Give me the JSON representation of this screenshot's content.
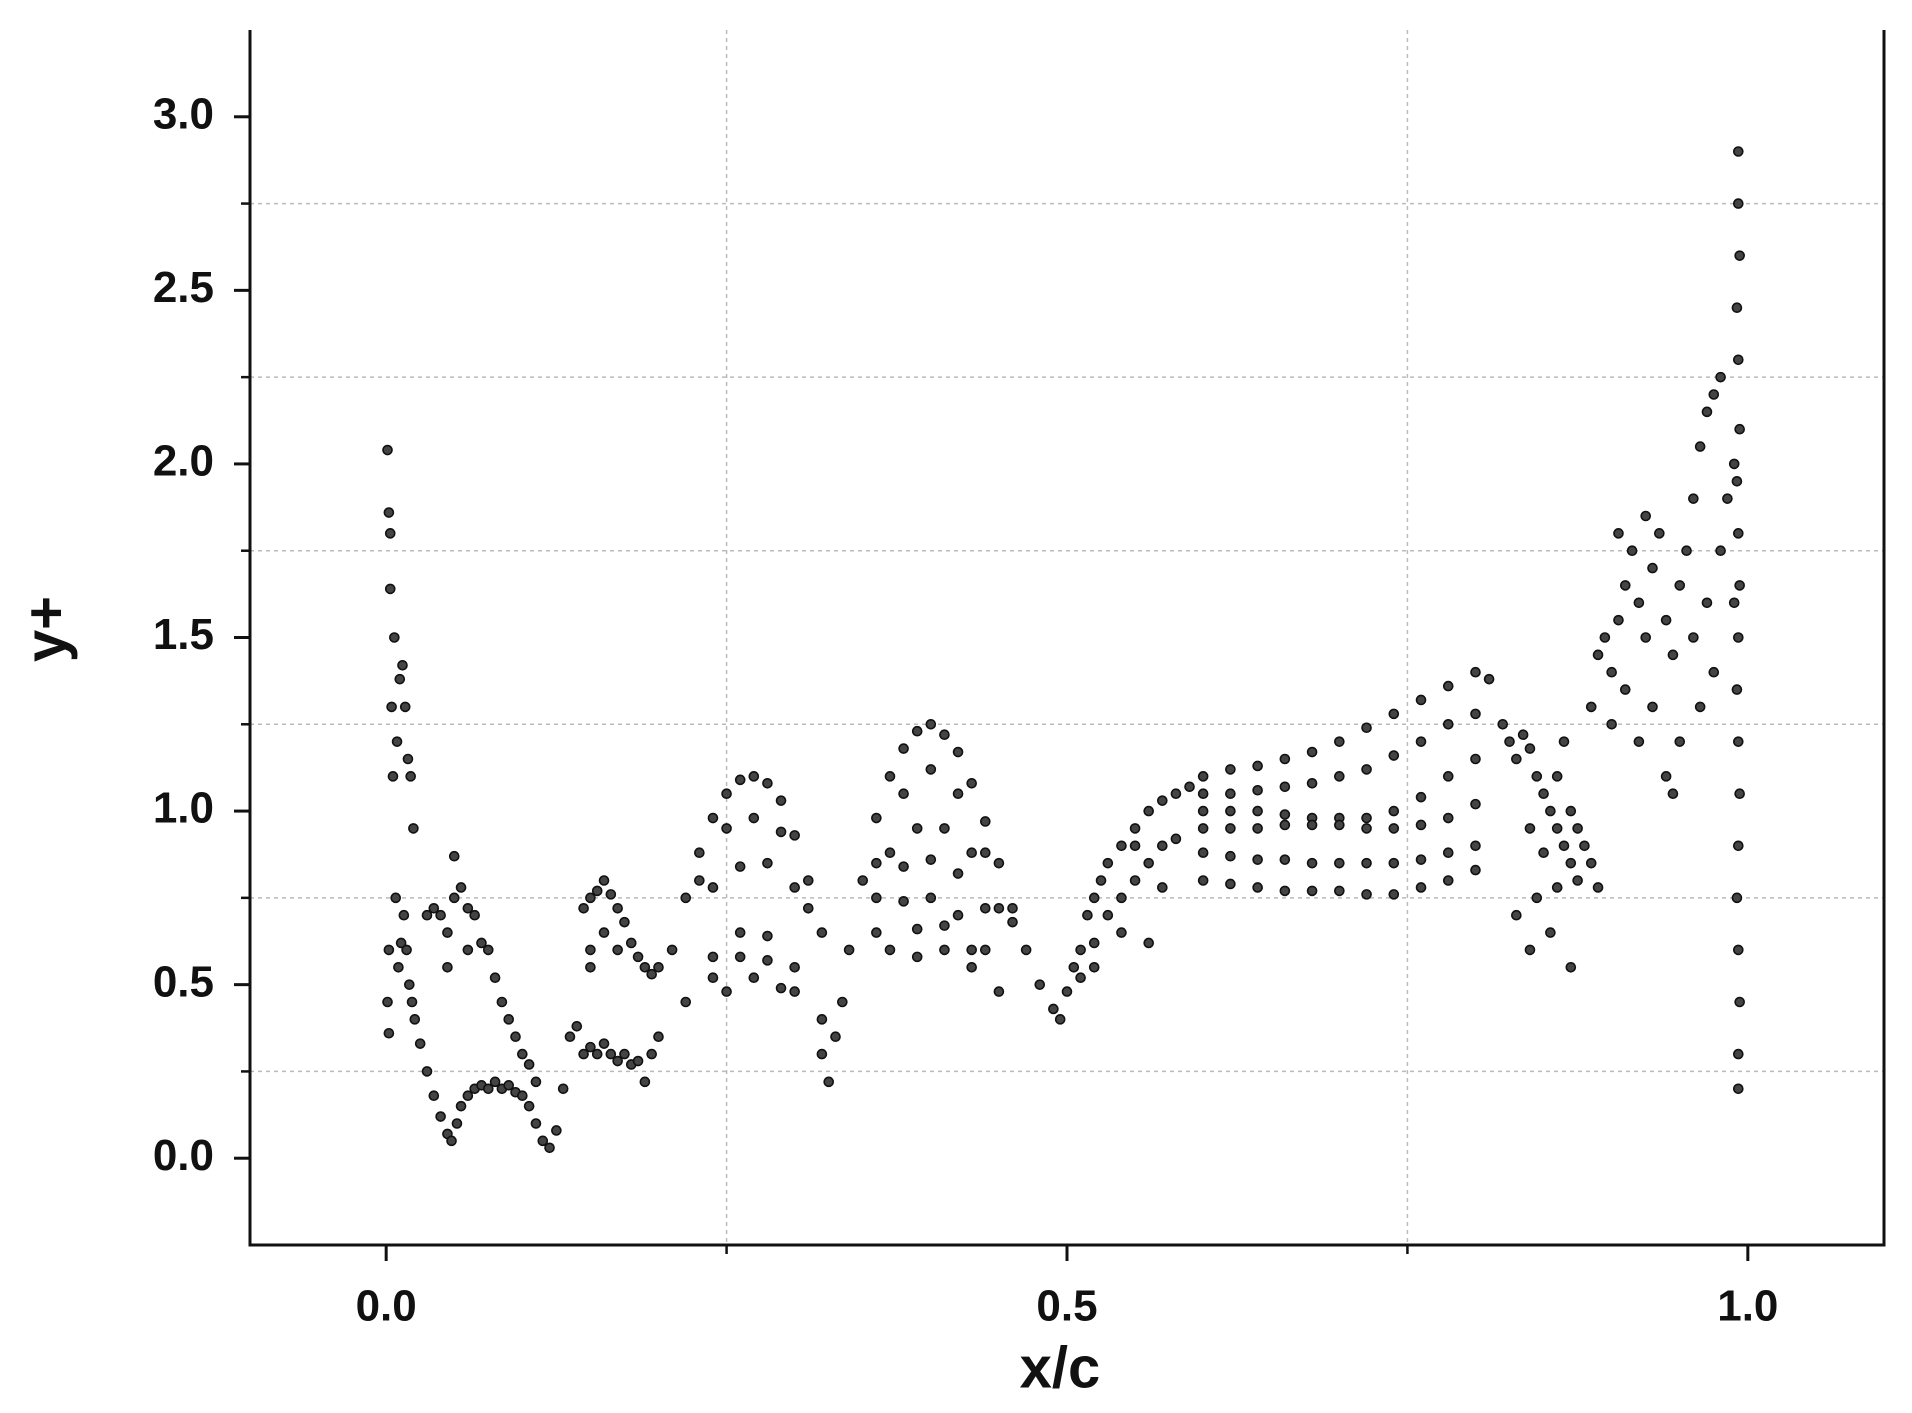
{
  "chart_data": {
    "type": "scatter",
    "xlabel": "x/c",
    "ylabel": "y+",
    "color": "#111111",
    "xlim": [
      -0.1,
      1.1
    ],
    "ylim": [
      -0.25,
      3.25
    ],
    "xticks": [
      {
        "value": 0,
        "label": "0.0"
      },
      {
        "value": 0.5,
        "label": "0.5"
      },
      {
        "value": 1,
        "label": "1.0"
      }
    ],
    "yticks": [
      {
        "value": 0,
        "label": "0.0"
      },
      {
        "value": 0.5,
        "label": "0.5"
      },
      {
        "value": 1,
        "label": "1.0"
      },
      {
        "value": 1.5,
        "label": "1.5"
      },
      {
        "value": 2,
        "label": "2.0"
      },
      {
        "value": 2.5,
        "label": "2.5"
      },
      {
        "value": 3,
        "label": "3.0"
      }
    ],
    "xgrid": [
      0.25,
      0.75
    ],
    "ygrid": [
      0.25,
      0.75,
      1.25,
      1.75,
      2.25,
      2.75
    ],
    "grid": true,
    "x": [
      0.001,
      0.002,
      0.003,
      0.003,
      0.004,
      0.002,
      0.001,
      0.002,
      0.005,
      0.006,
      0.008,
      0.01,
      0.012,
      0.014,
      0.016,
      0.018,
      0.02,
      0.007,
      0.009,
      0.011,
      0.013,
      0.015,
      0.017,
      0.019,
      0.021,
      0.025,
      0.03,
      0.035,
      0.04,
      0.045,
      0.048,
      0.052,
      0.055,
      0.06,
      0.065,
      0.07,
      0.075,
      0.08,
      0.085,
      0.09,
      0.095,
      0.1,
      0.105,
      0.11,
      0.115,
      0.12,
      0.125,
      0.03,
      0.035,
      0.04,
      0.045,
      0.05,
      0.055,
      0.06,
      0.065,
      0.07,
      0.075,
      0.08,
      0.085,
      0.09,
      0.095,
      0.1,
      0.105,
      0.11,
      0.05,
      0.045,
      0.06,
      0.13,
      0.135,
      0.14,
      0.145,
      0.15,
      0.155,
      0.16,
      0.165,
      0.17,
      0.175,
      0.18,
      0.185,
      0.19,
      0.195,
      0.2,
      0.145,
      0.15,
      0.155,
      0.16,
      0.165,
      0.17,
      0.175,
      0.18,
      0.185,
      0.19,
      0.195,
      0.2,
      0.15,
      0.16,
      0.17,
      0.15,
      0.21,
      0.22,
      0.23,
      0.24,
      0.25,
      0.26,
      0.27,
      0.28,
      0.29,
      0.3,
      0.31,
      0.32,
      0.23,
      0.25,
      0.27,
      0.29,
      0.31,
      0.24,
      0.26,
      0.28,
      0.3,
      0.22,
      0.24,
      0.26,
      0.28,
      0.3,
      0.32,
      0.24,
      0.26,
      0.28,
      0.3,
      0.25,
      0.27,
      0.29,
      0.32,
      0.325,
      0.33,
      0.335,
      0.34,
      0.35,
      0.36,
      0.37,
      0.38,
      0.39,
      0.4,
      0.41,
      0.42,
      0.43,
      0.44,
      0.45,
      0.46,
      0.47,
      0.48,
      0.49,
      0.36,
      0.38,
      0.4,
      0.42,
      0.44,
      0.46,
      0.37,
      0.39,
      0.41,
      0.43,
      0.45,
      0.36,
      0.38,
      0.4,
      0.42,
      0.44,
      0.36,
      0.38,
      0.4,
      0.42,
      0.44,
      0.37,
      0.39,
      0.41,
      0.43,
      0.45,
      0.39,
      0.41,
      0.43,
      0.495,
      0.5,
      0.505,
      0.51,
      0.515,
      0.52,
      0.525,
      0.53,
      0.54,
      0.55,
      0.56,
      0.57,
      0.58,
      0.59,
      0.52,
      0.53,
      0.54,
      0.55,
      0.56,
      0.57,
      0.58,
      0.51,
      0.52,
      0.54,
      0.56,
      0.57,
      0.55,
      0.6,
      0.62,
      0.64,
      0.66,
      0.68,
      0.7,
      0.72,
      0.74,
      0.76,
      0.78,
      0.8,
      0.81,
      0.6,
      0.62,
      0.64,
      0.66,
      0.68,
      0.7,
      0.72,
      0.74,
      0.76,
      0.78,
      0.8,
      0.6,
      0.62,
      0.64,
      0.66,
      0.68,
      0.7,
      0.72,
      0.74,
      0.76,
      0.78,
      0.8,
      0.6,
      0.62,
      0.64,
      0.66,
      0.68,
      0.7,
      0.72,
      0.74,
      0.76,
      0.78,
      0.8,
      0.6,
      0.62,
      0.64,
      0.66,
      0.68,
      0.7,
      0.72,
      0.74,
      0.76,
      0.78,
      0.8,
      0.6,
      0.62,
      0.64,
      0.66,
      0.68,
      0.7,
      0.72,
      0.74,
      0.76,
      0.78,
      0.8,
      0.82,
      0.825,
      0.83,
      0.835,
      0.84,
      0.845,
      0.85,
      0.855,
      0.86,
      0.865,
      0.87,
      0.875,
      0.84,
      0.85,
      0.86,
      0.865,
      0.87,
      0.875,
      0.88,
      0.885,
      0.89,
      0.83,
      0.84,
      0.855,
      0.87,
      0.845,
      0.86,
      0.885,
      0.89,
      0.895,
      0.9,
      0.905,
      0.91,
      0.915,
      0.92,
      0.925,
      0.93,
      0.935,
      0.94,
      0.945,
      0.95,
      0.955,
      0.96,
      0.965,
      0.97,
      0.975,
      0.98,
      0.9,
      0.91,
      0.92,
      0.93,
      0.94,
      0.95,
      0.96,
      0.97,
      0.975,
      0.98,
      0.985,
      0.905,
      0.925,
      0.945,
      0.965,
      0.993,
      0.993,
      0.994,
      0.992,
      0.993,
      0.994,
      0.992,
      0.993,
      0.994,
      0.993,
      0.992,
      0.993,
      0.994,
      0.993,
      0.992,
      0.993,
      0.994,
      0.993,
      0.993,
      0.99,
      0.99
    ],
    "values": [
      2.04,
      1.86,
      1.8,
      1.64,
      1.3,
      0.6,
      0.45,
      0.36,
      1.1,
      1.5,
      1.2,
      1.38,
      1.42,
      1.3,
      1.15,
      1.1,
      0.95,
      0.75,
      0.55,
      0.62,
      0.7,
      0.6,
      0.5,
      0.45,
      0.4,
      0.33,
      0.25,
      0.18,
      0.12,
      0.07,
      0.05,
      0.1,
      0.15,
      0.18,
      0.2,
      0.21,
      0.2,
      0.22,
      0.2,
      0.21,
      0.19,
      0.18,
      0.15,
      0.1,
      0.05,
      0.03,
      0.08,
      0.7,
      0.72,
      0.7,
      0.65,
      0.75,
      0.78,
      0.72,
      0.7,
      0.62,
      0.6,
      0.52,
      0.45,
      0.4,
      0.35,
      0.3,
      0.27,
      0.22,
      0.87,
      0.55,
      0.6,
      0.2,
      0.35,
      0.38,
      0.3,
      0.32,
      0.3,
      0.33,
      0.3,
      0.28,
      0.3,
      0.27,
      0.28,
      0.22,
      0.3,
      0.35,
      0.72,
      0.75,
      0.77,
      0.8,
      0.76,
      0.72,
      0.68,
      0.62,
      0.58,
      0.55,
      0.53,
      0.55,
      0.6,
      0.65,
      0.6,
      0.55,
      0.6,
      0.75,
      0.88,
      0.98,
      1.05,
      1.09,
      1.1,
      1.08,
      1.03,
      0.93,
      0.8,
      0.65,
      0.8,
      0.95,
      0.98,
      0.94,
      0.72,
      0.78,
      0.84,
      0.85,
      0.78,
      0.45,
      0.58,
      0.65,
      0.64,
      0.55,
      0.4,
      0.52,
      0.58,
      0.57,
      0.48,
      0.48,
      0.52,
      0.49,
      0.3,
      0.22,
      0.35,
      0.45,
      0.6,
      0.8,
      0.98,
      1.1,
      1.18,
      1.23,
      1.25,
      1.22,
      1.17,
      1.08,
      0.97,
      0.85,
      0.72,
      0.6,
      0.5,
      0.43,
      0.85,
      1.05,
      1.12,
      1.05,
      0.88,
      0.68,
      0.88,
      0.95,
      0.95,
      0.88,
      0.72,
      0.75,
      0.84,
      0.86,
      0.82,
      0.72,
      0.65,
      0.74,
      0.75,
      0.7,
      0.6,
      0.6,
      0.66,
      0.67,
      0.6,
      0.48,
      0.58,
      0.6,
      0.55,
      0.4,
      0.48,
      0.55,
      0.6,
      0.7,
      0.75,
      0.8,
      0.85,
      0.9,
      0.95,
      1.0,
      1.03,
      1.05,
      1.07,
      0.62,
      0.7,
      0.75,
      0.8,
      0.85,
      0.9,
      0.92,
      0.52,
      0.55,
      0.65,
      0.62,
      0.78,
      0.9,
      1.1,
      1.12,
      1.13,
      1.15,
      1.17,
      1.2,
      1.24,
      1.28,
      1.32,
      1.36,
      1.4,
      1.38,
      1.05,
      1.05,
      1.06,
      1.07,
      1.08,
      1.1,
      1.12,
      1.16,
      1.2,
      1.25,
      1.28,
      1.0,
      1.0,
      1.0,
      0.99,
      0.98,
      0.98,
      0.98,
      1.0,
      1.04,
      1.1,
      1.15,
      0.95,
      0.95,
      0.95,
      0.96,
      0.96,
      0.96,
      0.95,
      0.95,
      0.96,
      0.98,
      1.02,
      0.88,
      0.87,
      0.86,
      0.86,
      0.85,
      0.85,
      0.85,
      0.85,
      0.86,
      0.88,
      0.9,
      0.8,
      0.79,
      0.78,
      0.77,
      0.77,
      0.77,
      0.76,
      0.76,
      0.78,
      0.8,
      0.83,
      1.25,
      1.2,
      1.15,
      1.22,
      1.18,
      1.1,
      1.05,
      1.0,
      0.95,
      0.9,
      0.85,
      0.8,
      0.95,
      0.88,
      1.1,
      1.2,
      1.0,
      0.95,
      0.9,
      0.85,
      0.78,
      0.7,
      0.6,
      0.65,
      0.55,
      0.75,
      0.78,
      1.3,
      1.45,
      1.5,
      1.4,
      1.55,
      1.65,
      1.75,
      1.6,
      1.5,
      1.7,
      1.8,
      1.55,
      1.45,
      1.65,
      1.75,
      1.9,
      2.05,
      2.15,
      2.2,
      2.25,
      1.25,
      1.35,
      1.2,
      1.3,
      1.1,
      1.2,
      1.5,
      1.6,
      1.4,
      1.75,
      1.9,
      1.8,
      1.85,
      1.05,
      1.3,
      2.9,
      2.75,
      2.6,
      2.45,
      2.3,
      2.1,
      1.95,
      1.8,
      1.65,
      1.5,
      1.35,
      1.2,
      1.05,
      0.9,
      0.75,
      0.6,
      0.45,
      0.3,
      0.2,
      1.6,
      2.0
    ]
  }
}
